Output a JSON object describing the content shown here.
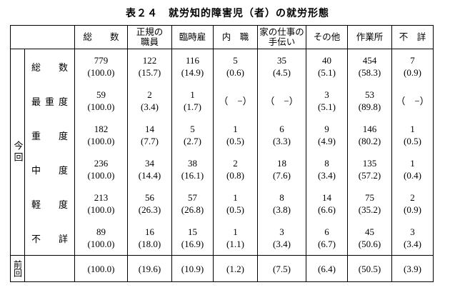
{
  "title": "表２４　就労知的障害児（者）の就労形態",
  "table": {
    "columns": [
      "総　　数",
      "正規の\n職員",
      "臨時雇",
      "内　職",
      "家の仕事の\n手伝い",
      "その他",
      "作業所",
      "不　詳"
    ],
    "row_group_current": "今回",
    "row_group_previous": "前回",
    "rows": [
      {
        "label": "総数",
        "cells": [
          [
            "779",
            "(100.0)"
          ],
          [
            "122",
            "(15.7)"
          ],
          [
            "116",
            "(14.9)"
          ],
          [
            "5",
            "(0.6)"
          ],
          [
            "35",
            "(4.5)"
          ],
          [
            "40",
            "(5.1)"
          ],
          [
            "454",
            "(58.3)"
          ],
          [
            "7",
            "(0.9)"
          ]
        ]
      },
      {
        "label": "最重度",
        "cells": [
          [
            "59",
            "(100.0)"
          ],
          [
            "2",
            "(3.4)"
          ],
          [
            "1",
            "(1.7)"
          ],
          [
            "",
            "（　−）"
          ],
          [
            "",
            "（　−）"
          ],
          [
            "3",
            "(5.1)"
          ],
          [
            "53",
            "(89.8)"
          ],
          [
            "",
            "（　−）"
          ]
        ]
      },
      {
        "label": "重度",
        "cells": [
          [
            "182",
            "(100.0)"
          ],
          [
            "14",
            "(7.7)"
          ],
          [
            "5",
            "(2.7)"
          ],
          [
            "1",
            "(0.5)"
          ],
          [
            "6",
            "(3.3)"
          ],
          [
            "9",
            "(4.9)"
          ],
          [
            "146",
            "(80.2)"
          ],
          [
            "1",
            "(0.5)"
          ]
        ]
      },
      {
        "label": "中度",
        "cells": [
          [
            "236",
            "(100.0)"
          ],
          [
            "34",
            "(14.4)"
          ],
          [
            "38",
            "(16.1)"
          ],
          [
            "2",
            "(0.8)"
          ],
          [
            "18",
            "(7.6)"
          ],
          [
            "8",
            "(3.4)"
          ],
          [
            "135",
            "(57.2)"
          ],
          [
            "1",
            "(0.4)"
          ]
        ]
      },
      {
        "label": "軽度",
        "cells": [
          [
            "213",
            "(100.0)"
          ],
          [
            "56",
            "(26.3)"
          ],
          [
            "57",
            "(26.8)"
          ],
          [
            "1",
            "(0.5)"
          ],
          [
            "8",
            "(3.8)"
          ],
          [
            "14",
            "(6.6)"
          ],
          [
            "75",
            "(35.2)"
          ],
          [
            "2",
            "(0.9)"
          ]
        ]
      },
      {
        "label": "不詳",
        "cells": [
          [
            "89",
            "(100.0)"
          ],
          [
            "16",
            "(18.0)"
          ],
          [
            "15",
            "(16.9)"
          ],
          [
            "1",
            "(1.1)"
          ],
          [
            "3",
            "(3.4)"
          ],
          [
            "6",
            "(6.7)"
          ],
          [
            "45",
            "(50.6)"
          ],
          [
            "3",
            "(3.4)"
          ]
        ]
      }
    ],
    "previous_row": {
      "label": "",
      "cells": [
        "(100.0)",
        "(19.6)",
        "(10.9)",
        "(1.2)",
        "(7.5)",
        "(6.4)",
        "(50.5)",
        "(3.9)"
      ]
    }
  }
}
